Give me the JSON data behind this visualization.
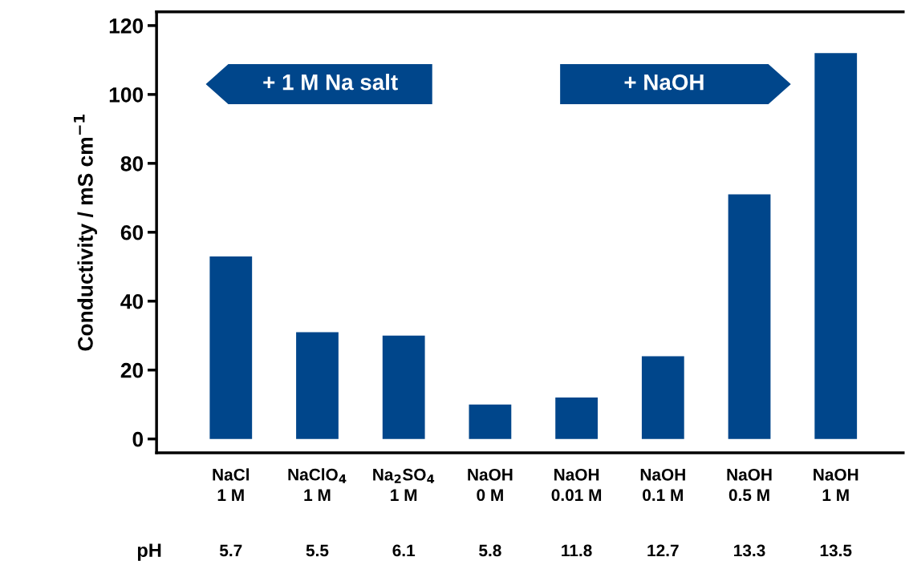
{
  "chart_data": {
    "type": "bar",
    "ylabel": "Conductivity / mS cm$^{−1}$",
    "categories": [
      "NaCl\n1 M",
      "NaClO$_{4}$\n1 M",
      "Na$_{2}$SO$_{4}$\n1 M",
      "NaOH\n0 M",
      "NaOH\n0.01 M",
      "NaOH\n0.1 M",
      "NaOH\n0.5 M",
      "NaOH\n1 M"
    ],
    "values": [
      53,
      31,
      30,
      10,
      12,
      24,
      71,
      112
    ],
    "color": "#00468b",
    "ylim": [
      -4,
      124
    ],
    "yticks": [
      0,
      20,
      40,
      60,
      80,
      100,
      120
    ],
    "annotations": [
      "+ 1 M Na salt",
      "+ NaOH",
      "pH",
      "5.7",
      "5.5",
      "6.1",
      "5.8",
      "11.8",
      "12.7",
      "13.3",
      "13.5"
    ]
  }
}
